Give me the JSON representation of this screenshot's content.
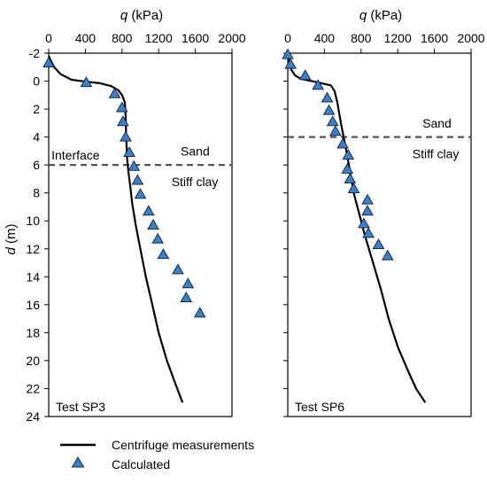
{
  "chart_data": [
    {
      "type": "line",
      "x_axis_label": {
        "symbol": "q",
        "unit": " (kPa)"
      },
      "y_axis_label": {
        "symbol": "d",
        "unit": " (m)"
      },
      "xlim": [
        0,
        2000
      ],
      "ylim": [
        -2,
        24
      ],
      "y_inverted": true,
      "x_position": "top",
      "x_ticks": [
        0,
        400,
        800,
        1200,
        1600,
        2000
      ],
      "y_ticks": [
        -2,
        0,
        2,
        4,
        6,
        8,
        10,
        12,
        14,
        16,
        18,
        20,
        22,
        24
      ],
      "panel_label": "Test SP3",
      "interface_depth": 6,
      "annotations": [
        {
          "text": "Interface",
          "q": 30,
          "d": 5.3
        },
        {
          "text": "Sand",
          "q": 1440,
          "d": 5.0
        },
        {
          "text": "Stiff clay",
          "q": 1340,
          "d": 7.2
        }
      ],
      "series": [
        {
          "name": "Centrifuge measurements",
          "kind": "line",
          "points": [
            [
              0,
              -1.8
            ],
            [
              20,
              -1.5
            ],
            [
              60,
              -1.0
            ],
            [
              130,
              -0.5
            ],
            [
              250,
              -0.1
            ],
            [
              420,
              0.05
            ],
            [
              560,
              0.15
            ],
            [
              680,
              0.35
            ],
            [
              760,
              0.65
            ],
            [
              800,
              1.0
            ],
            [
              830,
              1.5
            ],
            [
              840,
              2.5
            ],
            [
              845,
              4.0
            ],
            [
              855,
              5.5
            ],
            [
              870,
              6.5
            ],
            [
              890,
              7.5
            ],
            [
              910,
              8.7
            ],
            [
              950,
              10.3
            ],
            [
              1000,
              12.0
            ],
            [
              1060,
              14.0
            ],
            [
              1130,
              16.0
            ],
            [
              1200,
              18.0
            ],
            [
              1290,
              20.0
            ],
            [
              1380,
              21.6
            ],
            [
              1460,
              23.0
            ]
          ]
        },
        {
          "name": "Calculated",
          "kind": "scatter",
          "points": [
            [
              0,
              -1.3
            ],
            [
              410,
              0.1
            ],
            [
              720,
              0.9
            ],
            [
              800,
              1.9
            ],
            [
              810,
              2.9
            ],
            [
              840,
              4.0
            ],
            [
              880,
              5.1
            ],
            [
              930,
              6.1
            ],
            [
              970,
              7.1
            ],
            [
              1000,
              8.1
            ],
            [
              1090,
              9.3
            ],
            [
              1140,
              10.3
            ],
            [
              1190,
              11.3
            ],
            [
              1250,
              12.4
            ],
            [
              1410,
              13.5
            ],
            [
              1520,
              14.5
            ],
            [
              1500,
              15.5
            ],
            [
              1650,
              16.6
            ]
          ]
        }
      ]
    },
    {
      "type": "line",
      "x_axis_label": {
        "symbol": "q",
        "unit": " (kPa)"
      },
      "xlim": [
        0,
        2000
      ],
      "ylim": [
        -2,
        24
      ],
      "y_inverted": true,
      "x_position": "top",
      "x_ticks": [
        0,
        400,
        800,
        1200,
        1600,
        2000
      ],
      "panel_label": "Test SP6",
      "interface_depth": 4,
      "annotations": [
        {
          "text": "Sand",
          "q": 1470,
          "d": 3.0
        },
        {
          "text": "Stiff clay",
          "q": 1360,
          "d": 5.2
        }
      ],
      "series": [
        {
          "name": "Centrifuge measurements",
          "kind": "line",
          "points": [
            [
              0,
              -2.0
            ],
            [
              15,
              -1.4
            ],
            [
              40,
              -0.8
            ],
            [
              80,
              -0.4
            ],
            [
              150,
              -0.15
            ],
            [
              300,
              0.05
            ],
            [
              470,
              0.3
            ],
            [
              510,
              0.7
            ],
            [
              540,
              1.5
            ],
            [
              580,
              3.0
            ],
            [
              610,
              4.0
            ],
            [
              640,
              5.0
            ],
            [
              680,
              6.5
            ],
            [
              720,
              8.0
            ],
            [
              780,
              9.5
            ],
            [
              840,
              11.0
            ],
            [
              930,
              13.0
            ],
            [
              1020,
              15.0
            ],
            [
              1100,
              17.0
            ],
            [
              1200,
              19.0
            ],
            [
              1310,
              20.7
            ],
            [
              1400,
              22.0
            ],
            [
              1500,
              23.0
            ]
          ]
        },
        {
          "name": "Calculated",
          "kind": "scatter",
          "points": [
            [
              0,
              -1.9
            ],
            [
              30,
              -1.2
            ],
            [
              190,
              -0.4
            ],
            [
              330,
              0.3
            ],
            [
              430,
              1.2
            ],
            [
              450,
              2.1
            ],
            [
              490,
              2.9
            ],
            [
              520,
              3.6
            ],
            [
              600,
              4.5
            ],
            [
              660,
              5.3
            ],
            [
              650,
              6.3
            ],
            [
              680,
              7.0
            ],
            [
              720,
              7.7
            ],
            [
              870,
              8.5
            ],
            [
              870,
              9.3
            ],
            [
              830,
              10.2
            ],
            [
              880,
              10.9
            ],
            [
              990,
              11.7
            ],
            [
              1090,
              12.5
            ]
          ]
        }
      ]
    }
  ],
  "legend": {
    "placement": "bottom-left",
    "items": [
      {
        "label": "Centrifuge measurements",
        "kind": "line"
      },
      {
        "label": "Calculated",
        "kind": "marker"
      }
    ]
  },
  "colors": {
    "line": "#000000",
    "marker_fill": "#3b80c8",
    "marker_stroke": "#1a2a4a",
    "interface": "#555555"
  }
}
